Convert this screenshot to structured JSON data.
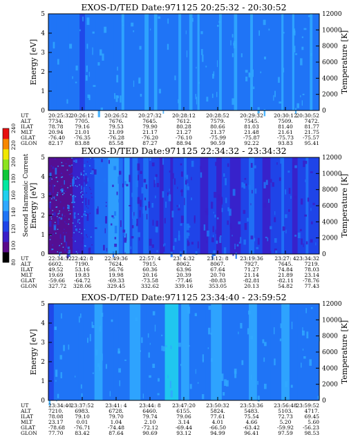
{
  "palette": [
    "#000000",
    "#5a0a8a",
    "#3a1fc8",
    "#1f44e8",
    "#1f74f6",
    "#30a8ff",
    "#20d0ee",
    "#00e8a0",
    "#10c838",
    "#8ce420",
    "#f0e800",
    "#f88800",
    "#e81010"
  ],
  "colorbar": {
    "label": "Second Harmonic Current",
    "ticks": [
      "80",
      "100",
      "120",
      "140",
      "160",
      "180",
      "200",
      "220",
      "240"
    ],
    "range": [
      80,
      240
    ]
  },
  "eph_row_labels": [
    "UT",
    "ALT",
    "ILAT",
    "MLT",
    "GLAT",
    "GLON"
  ],
  "chart_data": [
    {
      "type": "heatmap",
      "title": "EXOS-D/TED   Date:971125  20:25:32 - 20:30:52",
      "ylabel": "Energy [eV]",
      "y2label": "Temperature [K]",
      "ylim": [
        0,
        5
      ],
      "y2lim": [
        0,
        12000
      ],
      "yticks": [
        "0",
        "1",
        "2",
        "3",
        "4",
        "5"
      ],
      "y2ticks": [
        "0",
        "2000",
        "4000",
        "6000",
        "8000",
        "10000",
        "12000"
      ],
      "base_level": 4,
      "streaks": [
        [
          0.01,
          0.02,
          4
        ],
        [
          0.06,
          0.015,
          4
        ],
        [
          0.115,
          0.02,
          3
        ],
        [
          0.165,
          0.01,
          4
        ],
        [
          0.23,
          0.012,
          4
        ],
        [
          0.27,
          0.01,
          5
        ],
        [
          0.355,
          0.015,
          5
        ],
        [
          0.39,
          0.012,
          5
        ],
        [
          0.48,
          0.01,
          5
        ],
        [
          0.52,
          0.012,
          5
        ],
        [
          0.55,
          0.008,
          5
        ],
        [
          0.63,
          0.01,
          5
        ],
        [
          0.685,
          0.012,
          5
        ],
        [
          0.745,
          0.01,
          5
        ],
        [
          0.86,
          0.008,
          5
        ],
        [
          0.9,
          0.008,
          5
        ],
        [
          0.965,
          0.01,
          5
        ]
      ],
      "ephemeris": {
        "UT": [
          "20:25:32",
          "20:26:12",
          "20:26:52",
          "20:27:32",
          "20:28:12",
          "20:28:52",
          "20:29:32",
          "20:30:12",
          "20:30:52"
        ],
        "ALT": [
          "7734.",
          "7705.",
          "7676.",
          "7645.",
          "7612.",
          "7579.",
          "7545.",
          "7509.",
          "7472."
        ],
        "ILAT": [
          "78.78",
          "79.16",
          "79.53",
          "79.90",
          "80.28",
          "80.66",
          "81.03",
          "81.40",
          "81.77"
        ],
        "MLT": [
          "20.94",
          "21.01",
          "21.09",
          "21.17",
          "21.27",
          "21.37",
          "21.48",
          "21.61",
          "21.75"
        ],
        "GLAT": [
          "-76.40",
          "-76.35",
          "-76.28",
          "-76.20",
          "-76.10",
          "-75.99",
          "-75.87",
          "-75.73",
          "-75.57"
        ],
        "GLON": [
          "82.17",
          "83.88",
          "85.58",
          "87.27",
          "88.94",
          "90.59",
          "92.22",
          "93.83",
          "95.41"
        ]
      }
    },
    {
      "type": "heatmap",
      "title": "EXOS-D/TED   Date:971125  22:34:32 - 23:34:32",
      "ylabel": "Energy [eV]",
      "y2label": "Temperature [K]",
      "ylim": [
        0,
        5
      ],
      "y2lim": [
        0,
        12000
      ],
      "yticks": [
        "0",
        "1",
        "2",
        "3",
        "4",
        "5"
      ],
      "y2ticks": [
        "0",
        "2000",
        "4000",
        "6000",
        "8000",
        "10000",
        "12000"
      ],
      "base_level": 3,
      "streaks": [
        [
          0.0,
          0.09,
          1
        ],
        [
          0.09,
          0.04,
          2
        ],
        [
          0.13,
          0.04,
          3
        ],
        [
          0.17,
          0.05,
          4
        ],
        [
          0.22,
          0.04,
          5
        ],
        [
          0.26,
          0.015,
          4
        ],
        [
          0.28,
          0.02,
          5
        ],
        [
          0.31,
          0.02,
          4
        ],
        [
          0.35,
          0.02,
          4
        ],
        [
          0.41,
          0.015,
          2
        ],
        [
          0.45,
          0.01,
          2
        ],
        [
          0.5,
          0.01,
          4
        ],
        [
          0.56,
          0.03,
          2
        ],
        [
          0.62,
          0.02,
          2
        ],
        [
          0.67,
          0.04,
          2
        ],
        [
          0.74,
          0.02,
          4
        ],
        [
          0.79,
          0.03,
          2
        ],
        [
          0.86,
          0.01,
          4
        ],
        [
          0.9,
          0.02,
          2
        ],
        [
          0.95,
          0.01,
          4
        ]
      ],
      "ephemeris": {
        "UT": [
          "22:34:32",
          "22:42: 8",
          "22:49:36",
          "22:57: 4",
          "23: 4:32",
          "23:12: 8",
          "23:19:36",
          "23:27: 4",
          "23:34:32"
        ],
        "ALT": [
          "6602.",
          "7190.",
          "7624.",
          "7915.",
          "8062.",
          "8067.",
          "7927.",
          "7645.",
          "7219."
        ],
        "ILAT": [
          "49.52",
          "53.16",
          "56.76",
          "60.36",
          "63.96",
          "67.64",
          "71.27",
          "74.84",
          "78.03"
        ],
        "MLT": [
          "19.69",
          "19.83",
          "19.98",
          "20.16",
          "20.39",
          "20.70",
          "21.14",
          "21.89",
          "23.14"
        ],
        "GLAT": [
          "-59.66",
          "-64.72",
          "-69.33",
          "-73.58",
          "-77.46",
          "-80.83",
          "-82.81",
          "-82.11",
          "-78.76"
        ],
        "GLON": [
          "327.72",
          "328.06",
          "329.45",
          "332.62",
          "339.16",
          "353.05",
          "20.13",
          "54.82",
          "77.43"
        ]
      }
    },
    {
      "type": "heatmap",
      "title": "EXOS-D/TED   Date:971125  23:34:40 - 23:59:52",
      "ylabel": "Energy [eV]",
      "y2label": "Temperature [K]",
      "ylim": [
        0,
        5
      ],
      "y2lim": [
        0,
        12000
      ],
      "yticks": [
        "0",
        "1",
        "2",
        "3",
        "4",
        "5"
      ],
      "y2ticks": [
        "0",
        "2000",
        "4000",
        "6000",
        "8000",
        "10000",
        "12000"
      ],
      "base_level": 4,
      "streaks": [
        [
          0.0,
          0.02,
          3
        ],
        [
          0.11,
          0.02,
          4
        ],
        [
          0.17,
          0.03,
          5
        ],
        [
          0.24,
          0.02,
          4
        ],
        [
          0.3,
          0.04,
          5
        ],
        [
          0.36,
          0.02,
          4
        ],
        [
          0.43,
          0.05,
          6
        ],
        [
          0.49,
          0.03,
          5
        ],
        [
          0.56,
          0.02,
          4
        ],
        [
          0.6,
          0.04,
          5
        ],
        [
          0.67,
          0.02,
          4
        ],
        [
          0.74,
          0.03,
          5
        ],
        [
          0.8,
          0.02,
          4
        ],
        [
          0.86,
          0.03,
          5
        ],
        [
          0.92,
          0.02,
          4
        ]
      ],
      "ephemeris": {
        "UT": [
          "23:34:40",
          "23:37:52",
          "23:41: 4",
          "23:44: 8",
          "23:47:20",
          "23:50:32",
          "23:53:36",
          "23:56:48",
          "23:59:52"
        ],
        "ALT": [
          "7210.",
          "6983.",
          "6728.",
          "6460.",
          "6155.",
          "5824.",
          "5483.",
          "5103.",
          "4717."
        ],
        "ILAT": [
          "78.08",
          "79.10",
          "79.70",
          "79.74",
          "79.06",
          "77.61",
          "75.54",
          "72.73",
          "69.45"
        ],
        "MLT": [
          "23.17",
          "0.01",
          "1.04",
          "2.10",
          "3.14",
          "4.01",
          "4.66",
          "5.20",
          "5.60"
        ],
        "GLAT": [
          "-78.68",
          "-76.71",
          "-74.48",
          "-72.12",
          "-69.44",
          "-66.50",
          "-63.42",
          "-59.92",
          "-56.23"
        ],
        "GLON": [
          "77.70",
          "83.42",
          "87.64",
          "90.69",
          "93.12",
          "94.99",
          "96.41",
          "97.59",
          "98.53"
        ]
      }
    }
  ]
}
